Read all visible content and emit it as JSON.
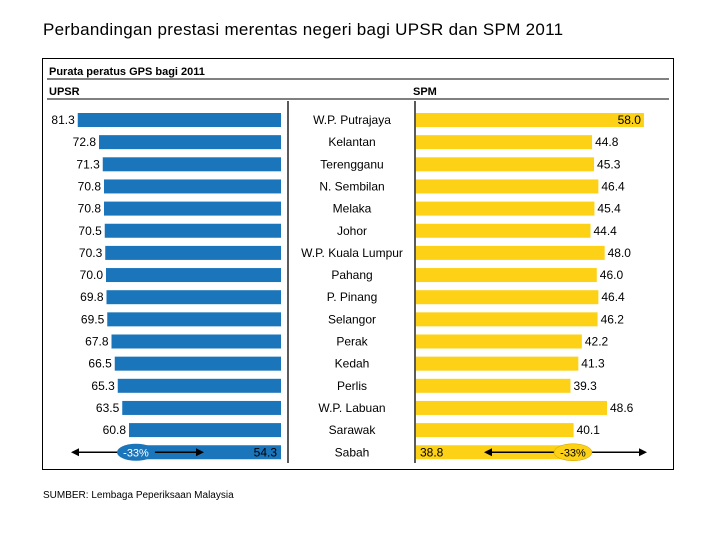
{
  "title": "Perbandingan prestasi merentas negeri bagi UPSR dan SPM 2011",
  "source": "SUMBER: Lembaga Peperiksaan Malaysia",
  "chart_data": {
    "type": "bar",
    "subtitle": "Purata peratus GPS bagi 2011",
    "categories": [
      "W.P. Putrajaya",
      "Kelantan",
      "Terengganu",
      "N. Sembilan",
      "Melaka",
      "Johor",
      "W.P. Kuala Lumpur",
      "Pahang",
      "P. Pinang",
      "Selangor",
      "Perak",
      "Kedah",
      "Perlis",
      "W.P. Labuan",
      "Sarawak",
      "Sabah"
    ],
    "series": [
      {
        "name": "UPSR",
        "color": "#1a75bb",
        "values": [
          81.3,
          72.8,
          71.3,
          70.8,
          70.8,
          70.5,
          70.3,
          70.0,
          69.8,
          69.5,
          67.8,
          66.5,
          65.3,
          63.5,
          60.8,
          54.3
        ]
      },
      {
        "name": "SPM",
        "color": "#fcd116",
        "values": [
          58.0,
          44.8,
          45.3,
          46.4,
          45.4,
          44.4,
          48.0,
          46.0,
          46.4,
          46.2,
          42.2,
          41.3,
          39.3,
          48.6,
          40.1,
          38.8
        ]
      }
    ],
    "annotations": [
      {
        "series": "UPSR",
        "text": "-33%",
        "color": "#1a75bb"
      },
      {
        "series": "SPM",
        "text": "-33%",
        "color": "#fcd116"
      }
    ]
  }
}
